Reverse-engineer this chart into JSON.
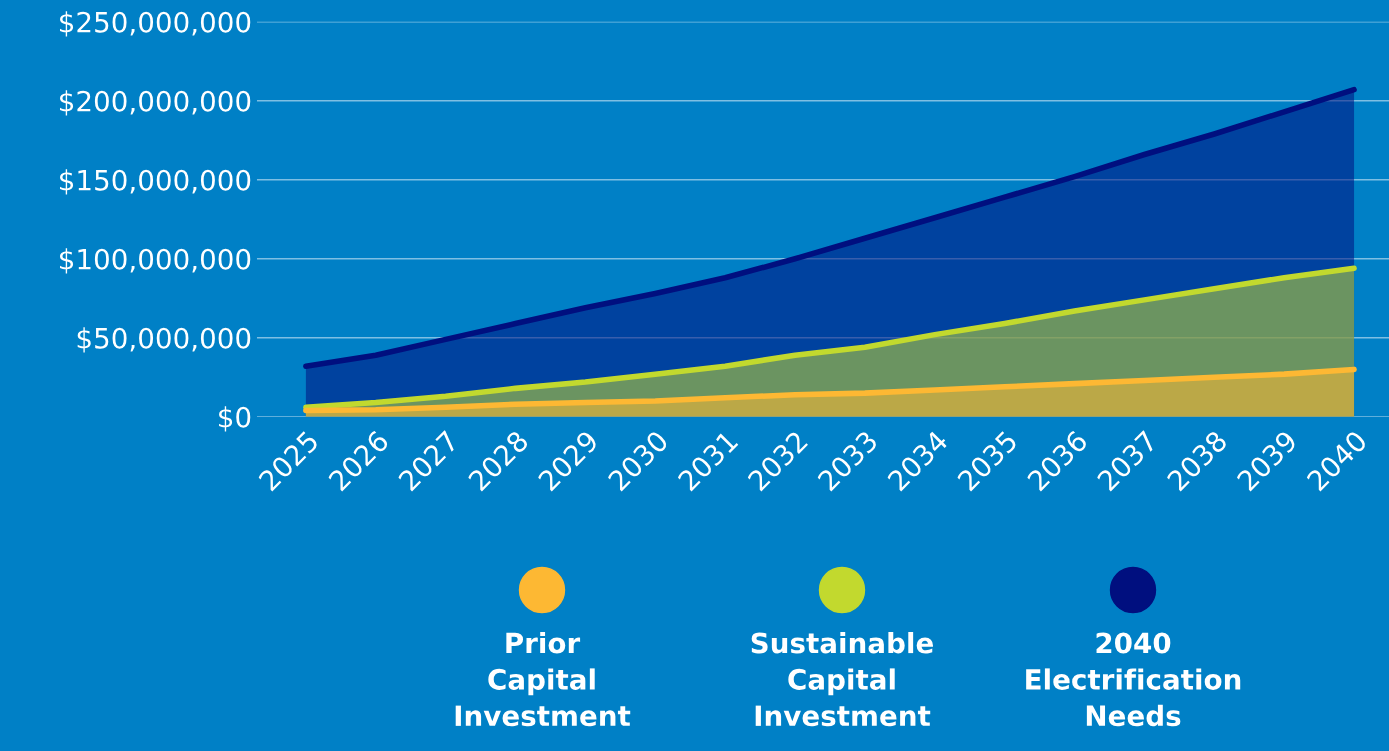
{
  "chart_data": {
    "type": "area",
    "x": [
      2025,
      2026,
      2027,
      2028,
      2029,
      2030,
      2031,
      2032,
      2033,
      2034,
      2035,
      2036,
      2037,
      2038,
      2039,
      2040
    ],
    "series": [
      {
        "name": "2040 Electrification Needs",
        "color": "#000f7f",
        "values": [
          32000000,
          39000000,
          49000000,
          59000000,
          69000000,
          78000000,
          88000000,
          100000000,
          113000000,
          126000000,
          139000000,
          152000000,
          166000000,
          179000000,
          193000000,
          207000000
        ]
      },
      {
        "name": "Sustainable Capital Investment",
        "color": "#c2d92e",
        "values": [
          6000000,
          9000000,
          13000000,
          18000000,
          22000000,
          27000000,
          32000000,
          39000000,
          44000000,
          52000000,
          59000000,
          67000000,
          74000000,
          81000000,
          88000000,
          94000000
        ]
      },
      {
        "name": "Prior Capital Investment",
        "color": "#fdb833",
        "values": [
          4000000,
          4500000,
          6000000,
          8000000,
          9000000,
          10000000,
          12000000,
          14000000,
          15000000,
          17000000,
          19000000,
          21000000,
          23000000,
          25000000,
          27000000,
          30000000
        ]
      }
    ],
    "xlim": [
      2024.3,
      2040.5
    ],
    "xticks": [
      2025,
      2026,
      2027,
      2028,
      2029,
      2030,
      2031,
      2032,
      2033,
      2034,
      2035,
      2036,
      2037,
      2038,
      2039,
      2040
    ],
    "ylim": [
      0,
      250000000
    ],
    "yticks": [
      {
        "value": 0,
        "label": "$0"
      },
      {
        "value": 50000000,
        "label": "$50,000,000"
      },
      {
        "value": 100000000,
        "label": "$100,000,000"
      },
      {
        "value": 150000000,
        "label": "$150,000,000"
      },
      {
        "value": 200000000,
        "label": "$200,000,000"
      },
      {
        "value": 250000000,
        "label": "$250,000,000"
      }
    ],
    "grid": "y",
    "legend": "bottom"
  }
}
